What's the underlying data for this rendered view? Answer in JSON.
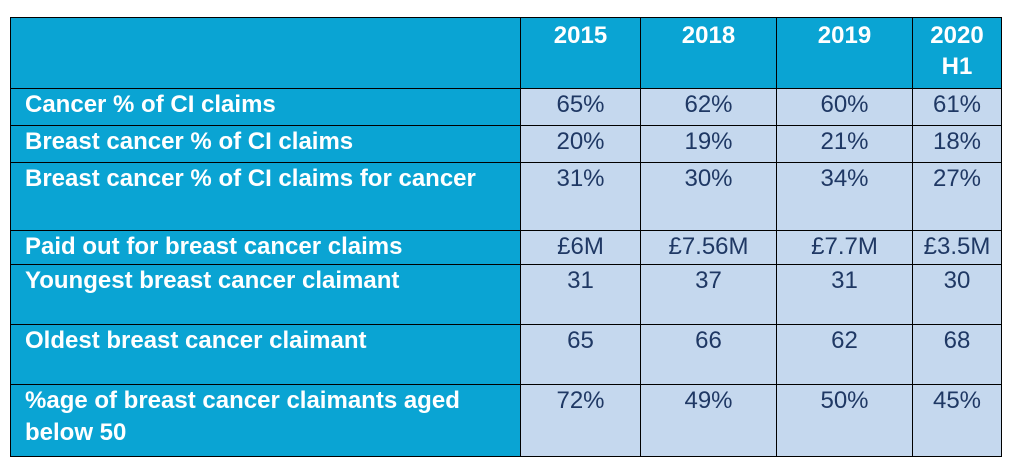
{
  "table": {
    "headers": [
      "",
      "2015",
      "2018",
      "2019",
      "2020 H1"
    ],
    "rows": [
      {
        "label": "Cancer % of CI claims",
        "values": [
          "65%",
          "62%",
          "60%",
          "61%"
        ]
      },
      {
        "label": "Breast cancer % of CI claims",
        "values": [
          "20%",
          "19%",
          "21%",
          "18%"
        ]
      },
      {
        "label": "Breast cancer % of CI claims for cancer",
        "values": [
          "31%",
          "30%",
          "34%",
          "27%"
        ]
      },
      {
        "label": "Paid out for breast cancer claims",
        "values": [
          "£6M",
          "£7.56M",
          "£7.7M",
          "£3.5M"
        ]
      },
      {
        "label": "Youngest breast cancer claimant",
        "values": [
          "31",
          "37",
          "31",
          "30"
        ]
      },
      {
        "label": "Oldest breast cancer claimant",
        "values": [
          "65",
          "66",
          "62",
          "68"
        ]
      },
      {
        "label": "%age of breast cancer claimants aged below 50",
        "values": [
          "72%",
          "49%",
          "50%",
          "45%"
        ]
      }
    ],
    "colors": {
      "header_bg": "#0aa4d3",
      "cell_bg": "#c5d8ee",
      "cell_text": "#1f3864",
      "border": "#000000"
    }
  }
}
